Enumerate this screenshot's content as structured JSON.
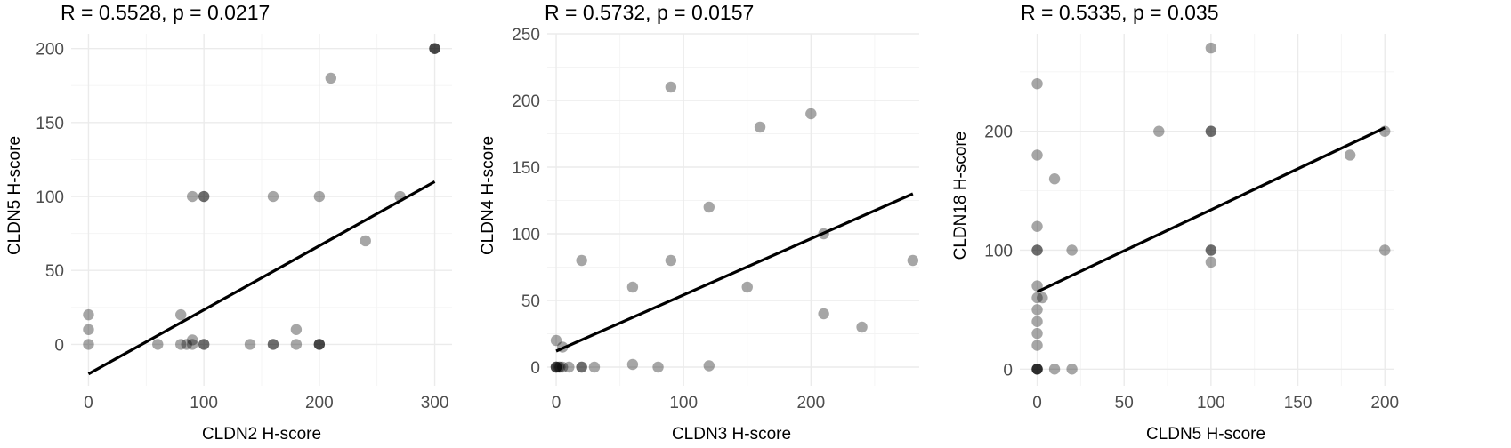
{
  "chart_data": [
    {
      "type": "scatter",
      "title": "R = 0.5528, p = 0.0217",
      "xlabel": "CLDN2 H-score",
      "ylabel": "CLDN5 H-score",
      "xlim": [
        -15,
        315
      ],
      "ylim": [
        -28,
        210
      ],
      "xticks": [
        0,
        100,
        200,
        300
      ],
      "yticks": [
        0,
        50,
        100,
        150,
        200
      ],
      "xminor": [
        50,
        150,
        250
      ],
      "yminor": [
        25,
        75,
        125,
        175
      ],
      "grid": true,
      "fit_line": {
        "x": [
          0,
          300
        ],
        "y": [
          -20,
          110
        ]
      },
      "points": [
        {
          "x": 0,
          "y": 20
        },
        {
          "x": 0,
          "y": 10
        },
        {
          "x": 0,
          "y": 0
        },
        {
          "x": 60,
          "y": 0
        },
        {
          "x": 80,
          "y": 20
        },
        {
          "x": 80,
          "y": 0
        },
        {
          "x": 85,
          "y": 0
        },
        {
          "x": 90,
          "y": 100
        },
        {
          "x": 90,
          "y": 0
        },
        {
          "x": 90,
          "y": 3
        },
        {
          "x": 100,
          "y": 100
        },
        {
          "x": 100,
          "y": 100
        },
        {
          "x": 100,
          "y": 0
        },
        {
          "x": 100,
          "y": 0
        },
        {
          "x": 140,
          "y": 0
        },
        {
          "x": 160,
          "y": 100
        },
        {
          "x": 160,
          "y": 0
        },
        {
          "x": 160,
          "y": 0
        },
        {
          "x": 180,
          "y": 10
        },
        {
          "x": 180,
          "y": 0
        },
        {
          "x": 200,
          "y": 100
        },
        {
          "x": 200,
          "y": 0
        },
        {
          "x": 200,
          "y": 0
        },
        {
          "x": 200,
          "y": 0
        },
        {
          "x": 210,
          "y": 180
        },
        {
          "x": 240,
          "y": 70
        },
        {
          "x": 270,
          "y": 100
        },
        {
          "x": 300,
          "y": 200
        },
        {
          "x": 300,
          "y": 200
        },
        {
          "x": 300,
          "y": 200
        }
      ]
    },
    {
      "type": "scatter",
      "title": "R = 0.5732, p = 0.0157",
      "xlabel": "CLDN3 H-score",
      "ylabel": "CLDN4 H-score",
      "xlim": [
        -7,
        285
      ],
      "ylim": [
        -14,
        250
      ],
      "xticks": [
        0,
        100,
        200
      ],
      "yticks": [
        0,
        50,
        100,
        150,
        200,
        250
      ],
      "xminor": [
        50,
        150,
        250
      ],
      "yminor": [
        25,
        75,
        125,
        175,
        225
      ],
      "grid": true,
      "fit_line": {
        "x": [
          0,
          280
        ],
        "y": [
          12,
          130
        ]
      },
      "points": [
        {
          "x": 0,
          "y": 20
        },
        {
          "x": 0,
          "y": 0
        },
        {
          "x": 0,
          "y": 0
        },
        {
          "x": 0,
          "y": 0
        },
        {
          "x": 2,
          "y": 0
        },
        {
          "x": 3,
          "y": 0
        },
        {
          "x": 5,
          "y": 0
        },
        {
          "x": 5,
          "y": 15
        },
        {
          "x": 10,
          "y": 0
        },
        {
          "x": 20,
          "y": 0
        },
        {
          "x": 20,
          "y": 0
        },
        {
          "x": 20,
          "y": 80
        },
        {
          "x": 30,
          "y": 0
        },
        {
          "x": 60,
          "y": 60
        },
        {
          "x": 60,
          "y": 2
        },
        {
          "x": 80,
          "y": 0
        },
        {
          "x": 90,
          "y": 210
        },
        {
          "x": 90,
          "y": 80
        },
        {
          "x": 120,
          "y": 120
        },
        {
          "x": 120,
          "y": 1
        },
        {
          "x": 150,
          "y": 60
        },
        {
          "x": 160,
          "y": 180
        },
        {
          "x": 200,
          "y": 190
        },
        {
          "x": 210,
          "y": 100
        },
        {
          "x": 210,
          "y": 40
        },
        {
          "x": 240,
          "y": 30
        },
        {
          "x": 280,
          "y": 80
        }
      ]
    },
    {
      "type": "scatter",
      "title": "R = 0.5335, p = 0.035",
      "xlabel": "CLDN5 H-score",
      "ylabel": "CLDN18 H-score",
      "xlim": [
        -10,
        205
      ],
      "ylim": [
        -14,
        282
      ],
      "xticks": [
        0,
        50,
        100,
        150,
        200
      ],
      "yticks": [
        0,
        100,
        200
      ],
      "xminor": [
        25,
        75,
        125,
        175
      ],
      "yminor": [
        50,
        150,
        250
      ],
      "grid": true,
      "fit_line": {
        "x": [
          0,
          200
        ],
        "y": [
          65,
          203
        ]
      },
      "points": [
        {
          "x": 0,
          "y": 240
        },
        {
          "x": 0,
          "y": 180
        },
        {
          "x": 0,
          "y": 120
        },
        {
          "x": 0,
          "y": 100
        },
        {
          "x": 0,
          "y": 100
        },
        {
          "x": 0,
          "y": 70
        },
        {
          "x": 0,
          "y": 60
        },
        {
          "x": 0,
          "y": 50
        },
        {
          "x": 0,
          "y": 40
        },
        {
          "x": 0,
          "y": 30
        },
        {
          "x": 0,
          "y": 20
        },
        {
          "x": 0,
          "y": 0
        },
        {
          "x": 0,
          "y": 0
        },
        {
          "x": 0,
          "y": 0
        },
        {
          "x": 0,
          "y": 0
        },
        {
          "x": 3,
          "y": 60
        },
        {
          "x": 10,
          "y": 160
        },
        {
          "x": 10,
          "y": 0
        },
        {
          "x": 20,
          "y": 100
        },
        {
          "x": 20,
          "y": 0
        },
        {
          "x": 70,
          "y": 200
        },
        {
          "x": 100,
          "y": 270
        },
        {
          "x": 100,
          "y": 200
        },
        {
          "x": 100,
          "y": 200
        },
        {
          "x": 100,
          "y": 100
        },
        {
          "x": 100,
          "y": 100
        },
        {
          "x": 100,
          "y": 90
        },
        {
          "x": 180,
          "y": 180
        },
        {
          "x": 200,
          "y": 200
        },
        {
          "x": 200,
          "y": 100
        }
      ]
    }
  ]
}
